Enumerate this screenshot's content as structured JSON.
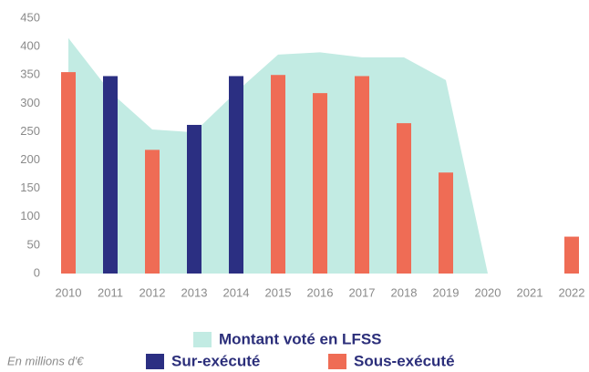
{
  "chart_data": {
    "type": "bar",
    "categories": [
      "2010",
      "2011",
      "2012",
      "2013",
      "2014",
      "2015",
      "2016",
      "2017",
      "2018",
      "2019",
      "2020",
      "2021",
      "2022"
    ],
    "area": {
      "name": "Montant voté en LFSS",
      "color": "#c2ebe3",
      "values": [
        415,
        320,
        254,
        249,
        320,
        386,
        390,
        381,
        381,
        341,
        0,
        0,
        0
      ]
    },
    "series": [
      {
        "name": "Sur-exécuté",
        "color": "#2b2f82",
        "values": [
          null,
          348,
          null,
          262,
          348,
          null,
          null,
          null,
          null,
          null,
          null,
          null,
          null
        ]
      },
      {
        "name": "Sous-exécuté",
        "color": "#ef6c55",
        "values": [
          355,
          null,
          218,
          null,
          null,
          350,
          318,
          348,
          265,
          178,
          null,
          null,
          65
        ]
      }
    ],
    "ylim": [
      0,
      450
    ],
    "yticks": [
      0,
      50,
      100,
      150,
      200,
      250,
      300,
      350,
      400,
      450
    ],
    "annotation": "En millions d'€"
  }
}
